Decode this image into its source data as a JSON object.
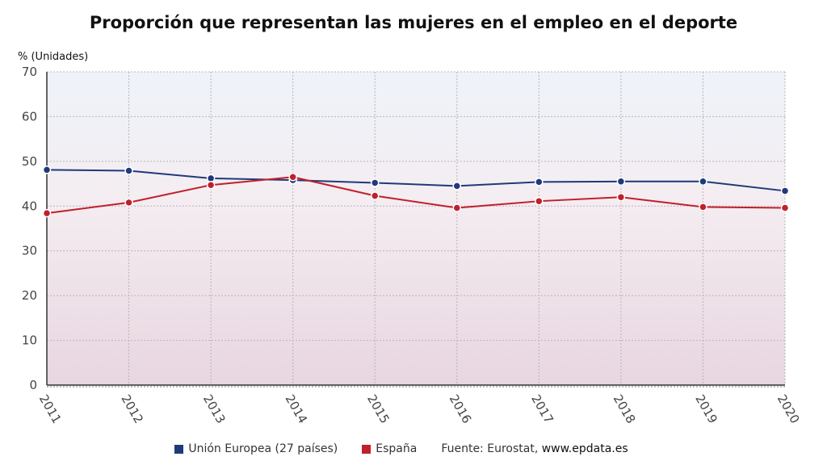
{
  "chart_data": {
    "type": "line",
    "title": "Proporción que representan las mujeres en el empleo en el deporte",
    "ylabel": "% (Unidades)",
    "xlabel": "",
    "x": [
      "2011",
      "2012",
      "2013",
      "2014",
      "2015",
      "2016",
      "2017",
      "2018",
      "2019",
      "2020"
    ],
    "ylim": [
      0,
      70
    ],
    "yticks": [
      0,
      10,
      20,
      30,
      40,
      50,
      60,
      70
    ],
    "grid": true,
    "legend_position": "bottom",
    "series": [
      {
        "name": "Unión Europea (27 países)",
        "color": "#1f3a7a",
        "values": [
          48.1,
          47.9,
          46.2,
          45.8,
          45.2,
          44.5,
          45.4,
          45.5,
          45.5,
          43.4
        ]
      },
      {
        "name": "España",
        "color": "#c0202a",
        "values": [
          38.4,
          40.8,
          44.7,
          46.5,
          42.3,
          39.6,
          41.1,
          42.0,
          39.8,
          39.6
        ]
      }
    ]
  },
  "legend": {
    "source_label": "Fuente: Eurostat,",
    "source_value": "www.epdata.es"
  }
}
